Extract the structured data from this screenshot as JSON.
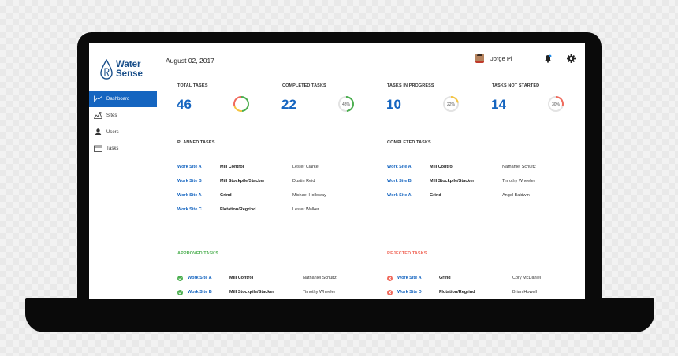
{
  "sidebar": {
    "logo_line1": "Water",
    "logo_line2": "Sense",
    "items": [
      {
        "label": "Dashboard",
        "icon": "chart-line-icon"
      },
      {
        "label": "Sites",
        "icon": "sites-icon"
      },
      {
        "label": "Users",
        "icon": "users-icon"
      },
      {
        "label": "Tasks",
        "icon": "tasks-icon"
      }
    ]
  },
  "header": {
    "date": "August 02, 2017",
    "user_name": "Jorge Pi"
  },
  "stats": [
    {
      "label": "TOTAL TASKS",
      "value": "46"
    },
    {
      "label": "COMPLETED TASKS",
      "value": "22",
      "percent_label": "48%"
    },
    {
      "label": "TASKS IN PROGRESS",
      "value": "10",
      "percent_label": "22%"
    },
    {
      "label": "TASKS NOT STARTED",
      "value": "14",
      "percent_label": "30%"
    }
  ],
  "donuts": {
    "total": {
      "segments": [
        {
          "fraction": 0.48,
          "color": "#4caf50"
        },
        {
          "fraction": 0.22,
          "color": "#f5c542"
        },
        {
          "fraction": 0.3,
          "color": "#f06a5c"
        }
      ]
    },
    "completed": {
      "fraction": 0.48,
      "color": "#4caf50"
    },
    "progress": {
      "fraction": 0.22,
      "color": "#f5c542"
    },
    "not_started": {
      "fraction": 0.3,
      "color": "#f06a5c"
    }
  },
  "planned": {
    "title": "PLANNED TASKS",
    "rows": [
      {
        "site": "Work Site A",
        "task": "Mill Control",
        "person": "Lester Clarke"
      },
      {
        "site": "Work Site B",
        "task": "Mill Stockpile/Stacker",
        "person": "Dustin Reid"
      },
      {
        "site": "Work Site A",
        "task": "Grind",
        "person": "Michael Holloway"
      },
      {
        "site": "Work Site C",
        "task": "Flotation/Regrind",
        "person": "Lester Walker"
      }
    ]
  },
  "completed": {
    "title": "COMPLETED TASKS",
    "rows": [
      {
        "site": "Work Site A",
        "task": "Mill Control",
        "person": "Nathaniel Schultz"
      },
      {
        "site": "Work Site B",
        "task": "Mill Stockpile/Stacker",
        "person": "Timothy Wheeler"
      },
      {
        "site": "Work Site A",
        "task": "Grind",
        "person": "Angel Baldwin"
      }
    ]
  },
  "approved": {
    "title": "APPROVED TASKS",
    "color": "#4caf50",
    "rows": [
      {
        "site": "Work Site A",
        "task": "Mill Control",
        "person": "Nathaniel Schultz"
      },
      {
        "site": "Work Site B",
        "task": "Mill Stockpile/Stacker",
        "person": "Timothy Wheeler"
      }
    ]
  },
  "rejected": {
    "title": "REJECTED TASKS",
    "color": "#f06a5c",
    "rows": [
      {
        "site": "Work Site A",
        "task": "Grind",
        "person": "Cory McDaniel"
      },
      {
        "site": "Work Site D",
        "task": "Flotation/Regrind",
        "person": "Brian Howell"
      }
    ]
  }
}
